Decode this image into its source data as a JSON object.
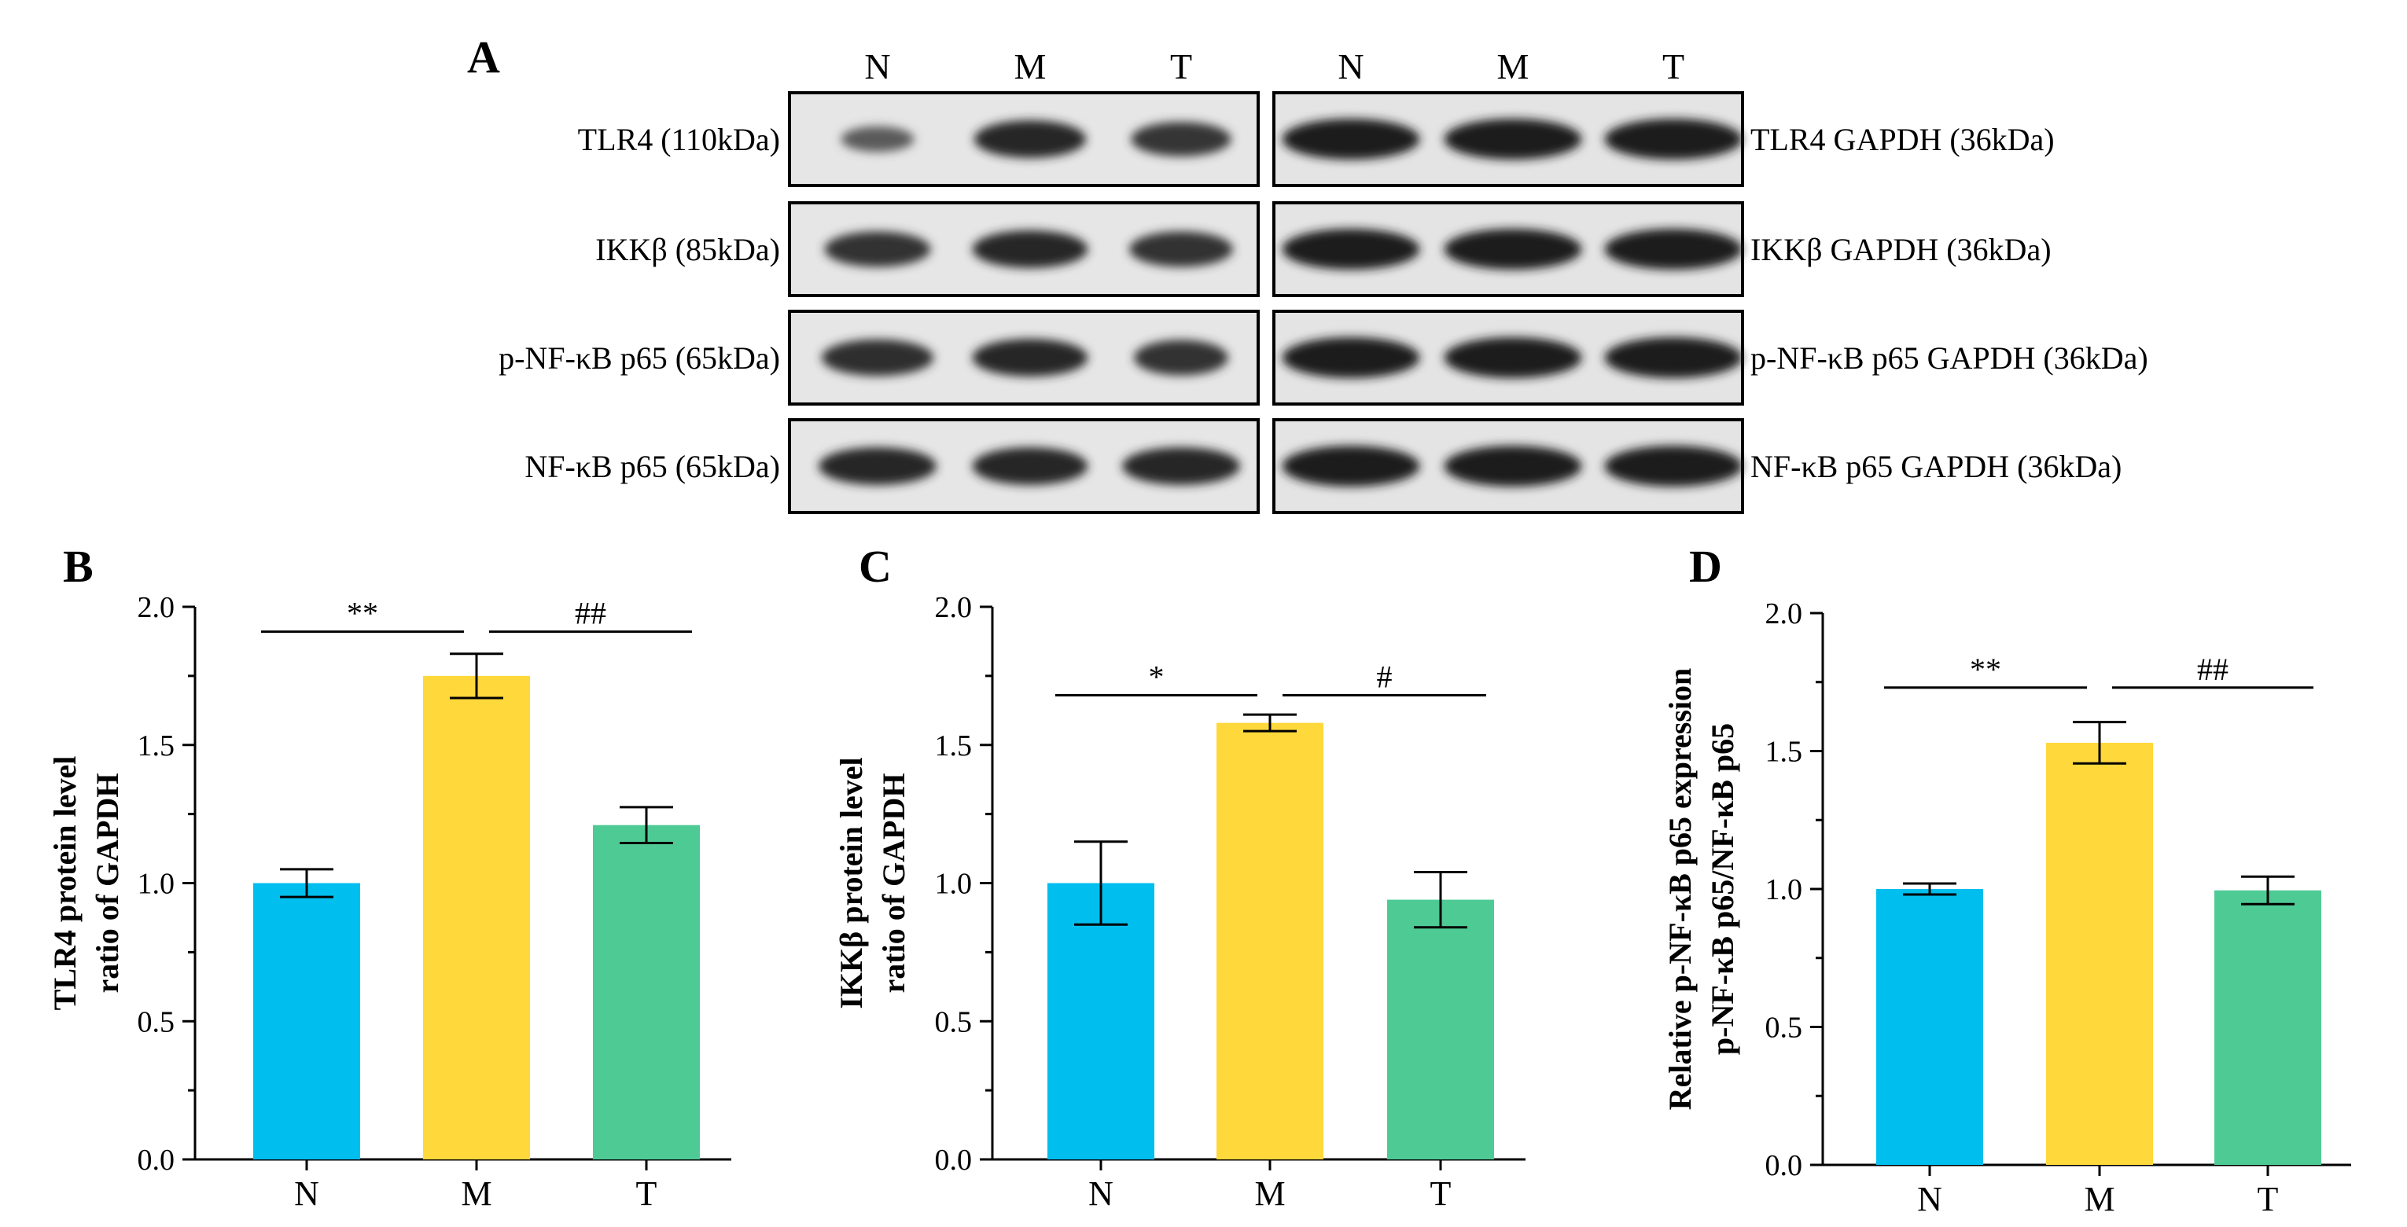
{
  "panel_a": {
    "letter": "A",
    "lanes": [
      "N",
      "M",
      "T",
      "N",
      "M",
      "T"
    ],
    "rows": [
      {
        "left_label": "TLR4 (110kDa)",
        "right_label": "TLR4 GAPDH (36kDa)",
        "left_intensity": [
          0.45,
          1.0,
          0.85
        ],
        "right_intensity": [
          1.0,
          1.0,
          1.0
        ],
        "left_width": [
          0.62,
          0.95,
          0.85
        ],
        "right_width": [
          1.0,
          1.0,
          1.0
        ]
      },
      {
        "left_label": "IKKβ (85kDa)",
        "right_label": "IKKβ GAPDH (36kDa)",
        "left_intensity": [
          0.9,
          1.0,
          0.9
        ],
        "right_intensity": [
          1.0,
          1.0,
          1.0
        ],
        "left_width": [
          0.9,
          0.98,
          0.88
        ],
        "right_width": [
          1.0,
          1.0,
          1.0
        ]
      },
      {
        "left_label": "p-NF-κB p65 (65kDa)",
        "right_label": "p-NF-κB p65 GAPDH (36kDa)",
        "left_intensity": [
          0.95,
          1.0,
          0.9
        ],
        "right_intensity": [
          1.0,
          1.0,
          1.0
        ],
        "left_width": [
          0.95,
          0.98,
          0.8
        ],
        "right_width": [
          1.0,
          1.0,
          1.0
        ]
      },
      {
        "left_label": "NF-κB p65 (65kDa)",
        "right_label": "NF-κB p65 GAPDH (36kDa)",
        "left_intensity": [
          1.0,
          1.0,
          1.0
        ],
        "right_intensity": [
          1.0,
          1.0,
          1.0
        ],
        "left_width": [
          1.0,
          0.98,
          1.0
        ],
        "right_width": [
          1.0,
          1.0,
          1.0
        ]
      }
    ]
  },
  "chart_data": [
    {
      "letter": "B",
      "type": "bar",
      "categories": [
        "N",
        "M",
        "T"
      ],
      "values": [
        1.0,
        1.75,
        1.21
      ],
      "errors": [
        0.05,
        0.08,
        0.065
      ],
      "ylabel_lines": [
        "TLR4 protein level",
        "ratio of GAPDH"
      ],
      "ylim": [
        0,
        2.0
      ],
      "yticks": [
        "0.0",
        "0.5",
        "1.0",
        "1.5",
        "2.0"
      ],
      "colors": [
        "#00bfef",
        "#ffd83b",
        "#4ecb95"
      ],
      "significance": [
        {
          "from": 0,
          "to": 1,
          "label": "**",
          "y": 1.91
        },
        {
          "from": 1,
          "to": 2,
          "label": "##",
          "y": 1.91
        }
      ]
    },
    {
      "letter": "C",
      "type": "bar",
      "categories": [
        "N",
        "M",
        "T"
      ],
      "values": [
        1.0,
        1.58,
        0.94
      ],
      "errors": [
        0.15,
        0.03,
        0.1
      ],
      "ylabel_lines": [
        "IKKβ protein level",
        "ratio of GAPDH"
      ],
      "ylim": [
        0,
        2.0
      ],
      "yticks": [
        "0.0",
        "0.5",
        "1.0",
        "1.5",
        "2.0"
      ],
      "colors": [
        "#00bfef",
        "#ffd83b",
        "#4ecb95"
      ],
      "significance": [
        {
          "from": 0,
          "to": 1,
          "label": "*",
          "y": 1.68
        },
        {
          "from": 1,
          "to": 2,
          "label": "#",
          "y": 1.68
        }
      ]
    },
    {
      "letter": "D",
      "type": "bar",
      "categories": [
        "N",
        "M",
        "T"
      ],
      "values": [
        1.0,
        1.53,
        0.995
      ],
      "errors": [
        0.02,
        0.075,
        0.05
      ],
      "ylabel_lines": [
        "Relative p-NF-κB p65 expression",
        "p-NF-κB p65/NF-κB p65"
      ],
      "ylim": [
        0,
        2.0
      ],
      "yticks": [
        "0.0",
        "0.5",
        "1.0",
        "1.5",
        "2.0"
      ],
      "colors": [
        "#00bfef",
        "#ffd83b",
        "#4ecb95"
      ],
      "significance": [
        {
          "from": 0,
          "to": 1,
          "label": "**",
          "y": 1.73
        },
        {
          "from": 1,
          "to": 2,
          "label": "##",
          "y": 1.73
        }
      ]
    }
  ]
}
